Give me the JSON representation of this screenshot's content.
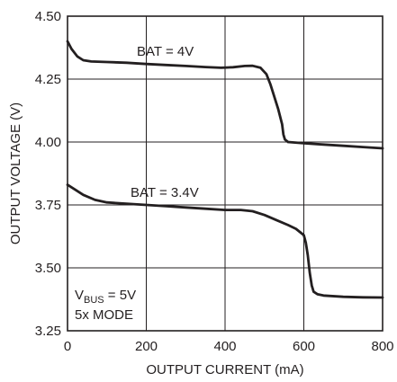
{
  "chart_data": {
    "type": "line",
    "xlabel": "OUTPUT CURRENT (mA)",
    "ylabel": "OUTPUT VOLTAGE (V)",
    "xlim": [
      0,
      800
    ],
    "ylim": [
      3.25,
      4.5
    ],
    "x_ticks": [
      "0",
      "200",
      "400",
      "600",
      "800"
    ],
    "y_ticks": [
      "3.25",
      "3.50",
      "3.75",
      "4.00",
      "4.25",
      "4.50"
    ],
    "grid": true,
    "series": [
      {
        "name": "BAT = 4V",
        "x": [
          0,
          10,
          25,
          40,
          60,
          100,
          150,
          200,
          250,
          300,
          350,
          390,
          420,
          450,
          470,
          490,
          505,
          515,
          525,
          535,
          545,
          548,
          552,
          560,
          600,
          650,
          700,
          750,
          800
        ],
        "y": [
          4.4,
          4.37,
          4.34,
          4.325,
          4.32,
          4.318,
          4.315,
          4.31,
          4.306,
          4.302,
          4.298,
          4.295,
          4.297,
          4.302,
          4.303,
          4.295,
          4.27,
          4.23,
          4.18,
          4.13,
          4.07,
          4.03,
          4.01,
          4.0,
          3.995,
          3.99,
          3.985,
          3.98,
          3.975
        ]
      },
      {
        "name": "BAT = 3.4V",
        "x": [
          0,
          20,
          40,
          70,
          100,
          150,
          200,
          250,
          300,
          350,
          400,
          440,
          470,
          500,
          530,
          560,
          580,
          600,
          605,
          610,
          615,
          620,
          625,
          635,
          650,
          700,
          750,
          800
        ],
        "y": [
          3.83,
          3.81,
          3.79,
          3.77,
          3.76,
          3.755,
          3.75,
          3.745,
          3.74,
          3.735,
          3.73,
          3.73,
          3.725,
          3.71,
          3.69,
          3.67,
          3.655,
          3.63,
          3.6,
          3.55,
          3.48,
          3.43,
          3.405,
          3.395,
          3.39,
          3.385,
          3.383,
          3.382
        ]
      }
    ],
    "annotations": {
      "series1_label": "BAT = 4V",
      "series2_label": "BAT = 3.4V",
      "vbus_prefix": "V",
      "vbus_sub": "BUS",
      "vbus_value": " = 5V",
      "mode": "5x MODE"
    }
  }
}
